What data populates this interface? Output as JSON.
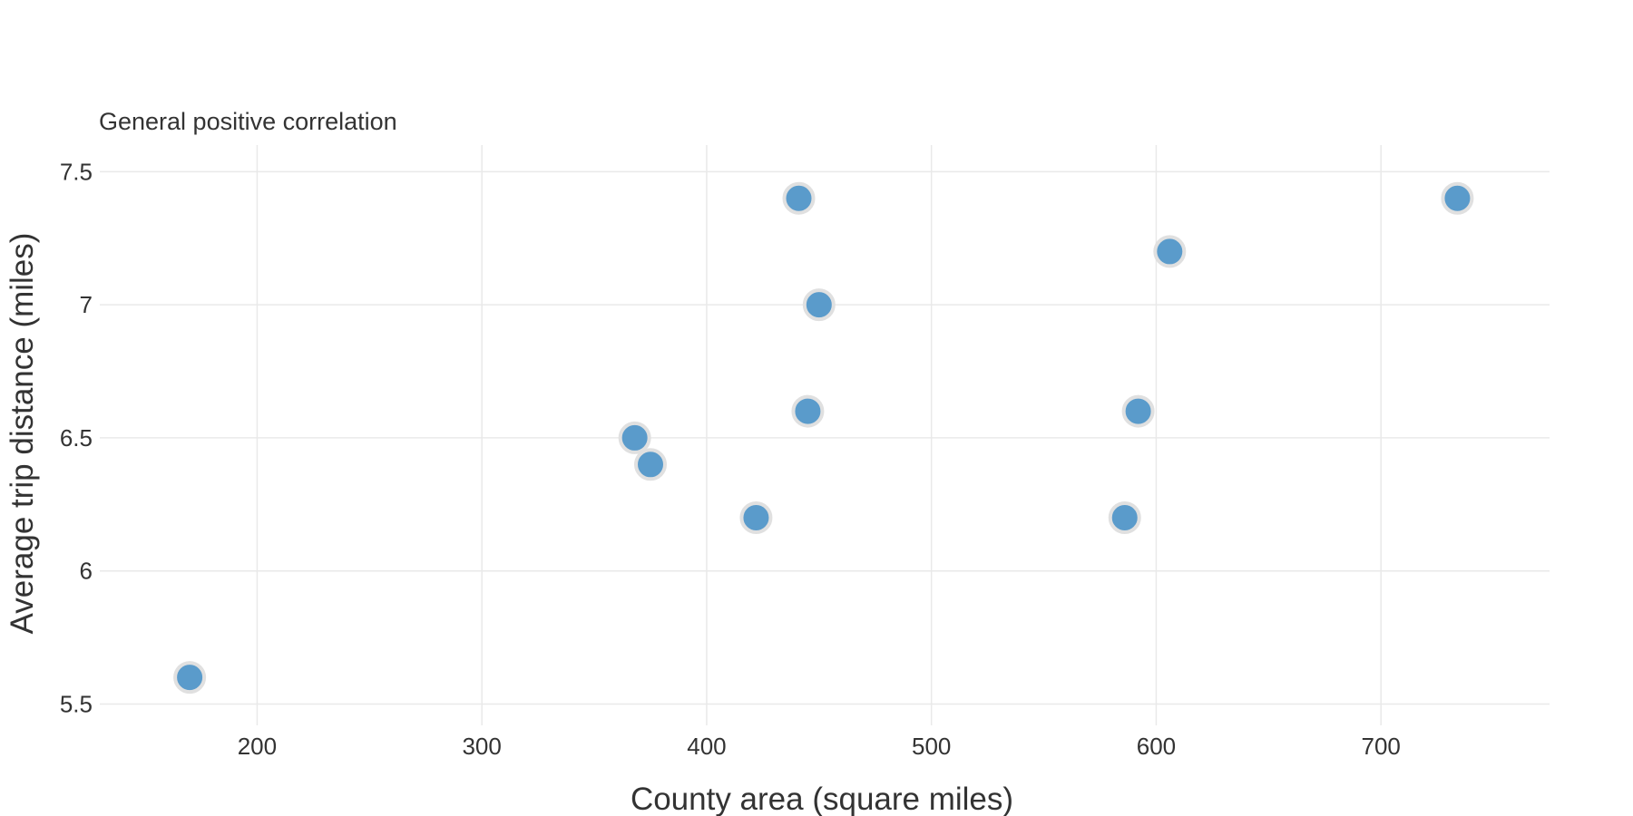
{
  "chart_data": {
    "type": "scatter",
    "xlabel": "County area (square miles)",
    "ylabel": "Average trip distance (miles)",
    "xlim": [
      130,
      775
    ],
    "ylim": [
      5.42,
      7.6
    ],
    "x_ticks": [
      200,
      300,
      400,
      500,
      600,
      700
    ],
    "y_ticks": [
      5.5,
      6,
      6.5,
      7,
      7.5
    ],
    "x_tick_labels": [
      "200",
      "300",
      "400",
      "500",
      "600",
      "700"
    ],
    "y_tick_labels": [
      "5.5",
      "6",
      "6.5",
      "7",
      "7.5"
    ],
    "grid": true,
    "annotation": "General positive correlation",
    "marker_color": "#5a9bcb",
    "marker_edge_color": "#e0e0e0",
    "points": [
      {
        "x": 170,
        "y": 5.6
      },
      {
        "x": 368,
        "y": 6.5
      },
      {
        "x": 375,
        "y": 6.4
      },
      {
        "x": 422,
        "y": 6.2
      },
      {
        "x": 441,
        "y": 7.4
      },
      {
        "x": 445,
        "y": 6.6
      },
      {
        "x": 450,
        "y": 7.0
      },
      {
        "x": 586,
        "y": 6.2
      },
      {
        "x": 592,
        "y": 6.6
      },
      {
        "x": 606,
        "y": 7.2
      },
      {
        "x": 734,
        "y": 7.4
      }
    ]
  }
}
